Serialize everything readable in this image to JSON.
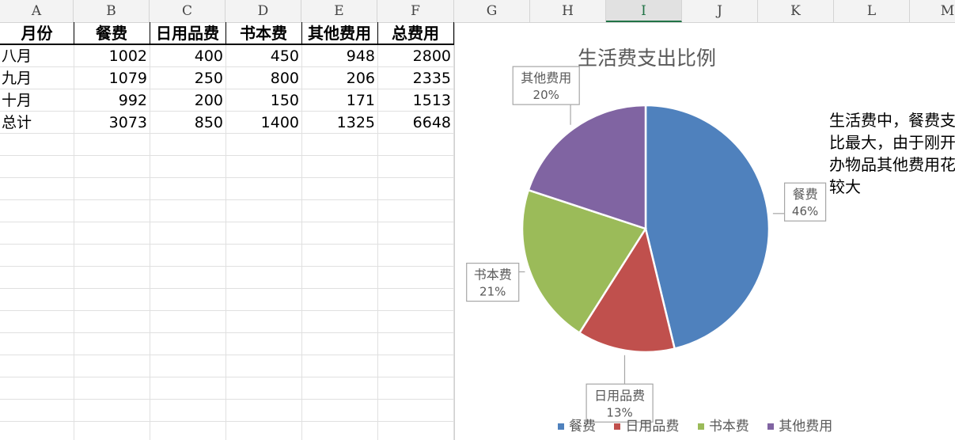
{
  "columns": [
    "A",
    "B",
    "C",
    "D",
    "E",
    "F",
    "G",
    "H",
    "I",
    "J",
    "K",
    "L",
    "M"
  ],
  "selected_column": "I",
  "table": {
    "headers": [
      "月份",
      "餐费",
      "日用品费",
      "书本费",
      "其他费用",
      "总费用"
    ],
    "rows": [
      [
        "八月",
        "1002",
        "400",
        "450",
        "948",
        "2800"
      ],
      [
        "九月",
        "1079",
        "250",
        "800",
        "206",
        "2335"
      ],
      [
        "十月",
        "992",
        "200",
        "150",
        "171",
        "1513"
      ],
      [
        "总计",
        "3073",
        "850",
        "1400",
        "1325",
        "6648"
      ]
    ]
  },
  "chart_data": {
    "type": "pie",
    "title": "生活费支出比例",
    "categories": [
      "餐费",
      "日用品费",
      "书本费",
      "其他费用"
    ],
    "values": [
      3073,
      850,
      1400,
      1325
    ],
    "labels": [
      "46%",
      "13%",
      "21%",
      "20%"
    ],
    "colors": [
      "#4f81bd",
      "#c0504d",
      "#9bbb59",
      "#8064a2"
    ],
    "legend": "bottom"
  },
  "note": {
    "lines": [
      "生活费中，餐费支",
      "比最大，由于刚开",
      "办物品其他费用花",
      "较大"
    ]
  }
}
